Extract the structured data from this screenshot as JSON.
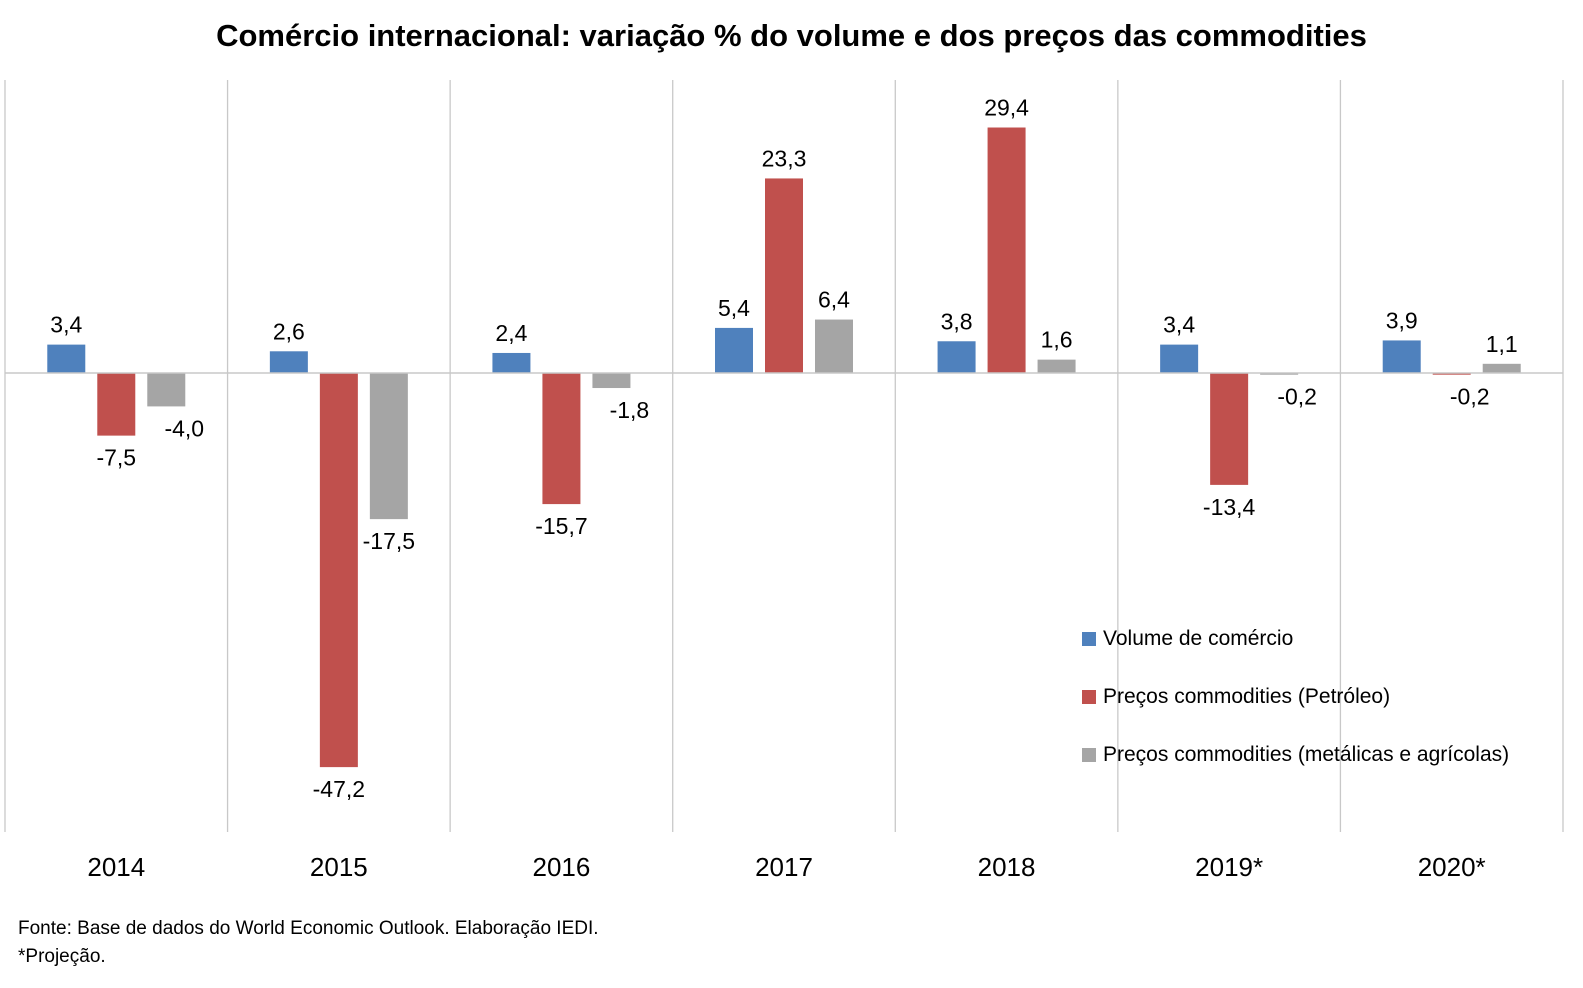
{
  "chart_data": {
    "type": "bar",
    "title": "Comércio internacional: variação % do volume e dos preços das commodities",
    "categories": [
      "2014",
      "2015",
      "2016",
      "2017",
      "2018",
      "2019*",
      "2020*"
    ],
    "series": [
      {
        "name": "Volume de comércio",
        "color": "#4f81bd",
        "values": [
          3.4,
          2.6,
          2.4,
          5.4,
          3.8,
          3.4,
          3.9
        ],
        "labels": [
          "3,4",
          "2,6",
          "2,4",
          "5,4",
          "3,8",
          "3,4",
          "3,9"
        ]
      },
      {
        "name": "Preços commodities (Petróleo)",
        "color": "#c0504d",
        "values": [
          -7.5,
          -47.2,
          -15.7,
          23.3,
          29.4,
          -13.4,
          -0.2
        ],
        "labels": [
          "-7,5",
          "-47,2",
          "-15,7",
          "23,3",
          "29,4",
          "-13,4",
          "-0,2"
        ]
      },
      {
        "name": "Preços commodities (metálicas e agrícolas)",
        "color": "#a5a5a5",
        "values": [
          -4.0,
          -17.5,
          -1.8,
          6.4,
          1.6,
          -0.2,
          1.1
        ],
        "labels": [
          "-4,0",
          "-17,5",
          "-1,8",
          "6,4",
          "1,6",
          "-0,2",
          "1,1"
        ]
      }
    ],
    "ylim": [
      -55,
      35
    ],
    "grid": "vertical separators between categories",
    "legend_position": "bottom-right"
  },
  "footer": {
    "source": "Fonte: Base de dados do World Economic Outlook. Elaboração IEDI.",
    "note": "*Projeção."
  }
}
